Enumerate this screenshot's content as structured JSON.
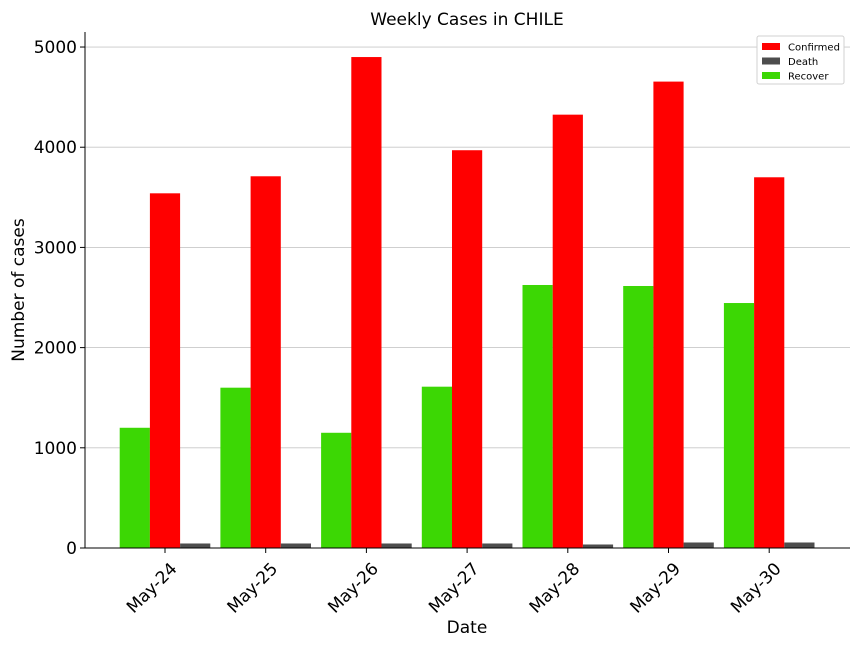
{
  "chart_data": {
    "type": "bar",
    "title": "Weekly Cases in CHILE",
    "xlabel": "Date",
    "ylabel": "Number of cases",
    "categories": [
      "May-24",
      "May-25",
      "May-26",
      "May-27",
      "May-28",
      "May-29",
      "May-30"
    ],
    "series": [
      {
        "name": "Recover",
        "color": "#3cd704",
        "values": [
          1200,
          1600,
          1150,
          1610,
          2625,
          2615,
          2445
        ]
      },
      {
        "name": "Confirmed",
        "color": "#ff0000",
        "values": [
          3540,
          3710,
          4900,
          3970,
          4325,
          4655,
          3700
        ]
      },
      {
        "name": "Death",
        "color": "#4d4d4d",
        "values": [
          45,
          45,
          45,
          45,
          35,
          55,
          55
        ]
      }
    ],
    "legend_order": [
      "Confirmed",
      "Death",
      "Recover"
    ],
    "legend_position": "top-right",
    "ylim": [
      0,
      5150
    ],
    "yticks": [
      "0",
      "1000",
      "2000",
      "3000",
      "4000",
      "5000"
    ],
    "ytick_values": [
      0,
      1000,
      2000,
      3000,
      4000,
      5000
    ],
    "grid": "horizontal"
  }
}
